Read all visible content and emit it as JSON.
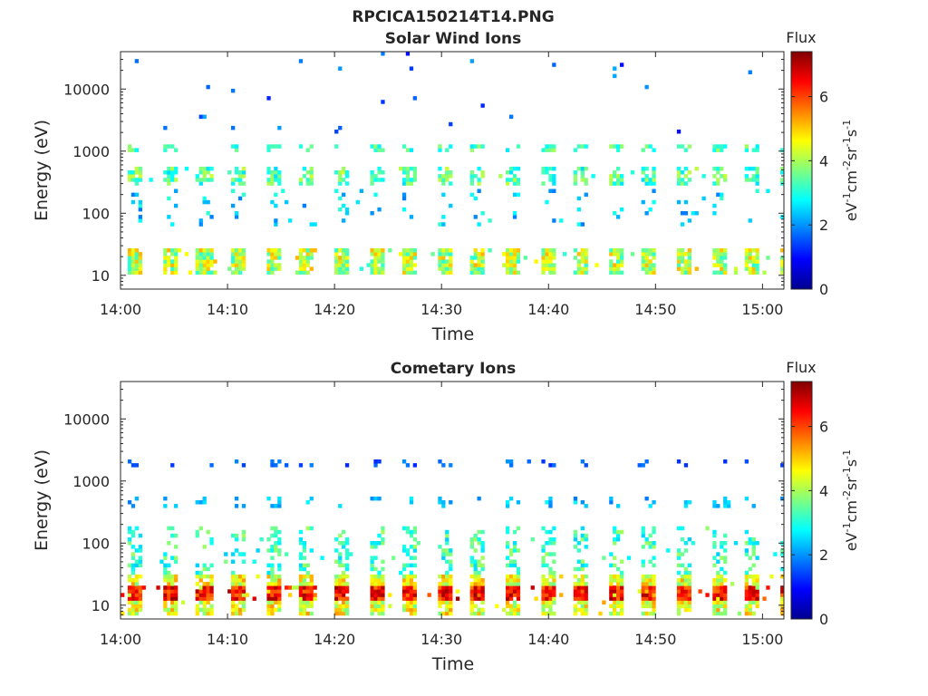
{
  "figure": {
    "title": "RPCICA150214T14.PNG"
  },
  "colorbar": {
    "label": "Flux",
    "unit_main": "eV",
    "unit_sup1": "-1",
    "unit_cm": "cm",
    "unit_sup2": "-2",
    "unit_sr": "sr",
    "unit_sup3": "-1",
    "unit_s": "s",
    "unit_sup4": "-1",
    "range": [
      0,
      7.4
    ],
    "ticks": [
      0,
      2,
      4,
      6
    ],
    "tick_labels": [
      "0",
      "2",
      "4",
      "6"
    ],
    "colormap": "jet"
  },
  "chart_data": [
    {
      "type": "heatmap",
      "title": "Solar Wind Ions",
      "xlabel": "Time",
      "ylabel": "Energy (eV)",
      "x_range": [
        "14:00",
        "15:02"
      ],
      "xlim_minutes": [
        0,
        62
      ],
      "y_scale": "log",
      "ylim": [
        6,
        40000
      ],
      "x_ticks": [
        "14:00",
        "14:10",
        "14:20",
        "14:30",
        "14:40",
        "14:50",
        "15:00"
      ],
      "y_ticks": [
        10,
        100,
        1000,
        10000
      ],
      "y_tick_labels": [
        "10",
        "100",
        "1000",
        "10000"
      ],
      "sweep_period_min": 3.2,
      "bands": [
        {
          "e_min": 10,
          "e_max": 28,
          "flux_min": 3.0,
          "flux_max": 5.2,
          "density": 0.9
        },
        {
          "e_min": 300,
          "e_max": 550,
          "flux_min": 2.5,
          "flux_max": 4.3,
          "density": 0.6
        },
        {
          "e_min": 1000,
          "e_max": 1300,
          "flux_min": 2.6,
          "flux_max": 4.0,
          "density": 0.5
        },
        {
          "e_min": 60,
          "e_max": 250,
          "flux_min": 1.8,
          "flux_max": 3.2,
          "density": 0.12
        },
        {
          "e_min": 2000,
          "e_max": 40000,
          "flux_min": 1.0,
          "flux_max": 2.2,
          "density": 0.02
        }
      ]
    },
    {
      "type": "heatmap",
      "title": "Cometary Ions",
      "xlabel": "Time",
      "ylabel": "Energy (eV)",
      "x_range": [
        "14:00",
        "15:02"
      ],
      "xlim_minutes": [
        0,
        62
      ],
      "y_scale": "log",
      "ylim": [
        6,
        40000
      ],
      "x_ticks": [
        "14:00",
        "14:10",
        "14:20",
        "14:30",
        "14:40",
        "14:50",
        "15:00"
      ],
      "y_ticks": [
        10,
        100,
        1000,
        10000
      ],
      "y_tick_labels": [
        "10",
        "100",
        "1000",
        "10000"
      ],
      "sweep_period_min": 3.2,
      "bands": [
        {
          "e_min": 12,
          "e_max": 22,
          "flux_min": 5.6,
          "flux_max": 7.2,
          "density": 0.95
        },
        {
          "e_min": 7,
          "e_max": 30,
          "flux_min": 3.6,
          "flux_max": 5.4,
          "density": 0.8
        },
        {
          "e_min": 30,
          "e_max": 200,
          "flux_min": 2.4,
          "flux_max": 4.0,
          "density": 0.35
        },
        {
          "e_min": 350,
          "e_max": 550,
          "flux_min": 1.8,
          "flux_max": 2.8,
          "density": 0.3
        },
        {
          "e_min": 1800,
          "e_max": 2300,
          "flux_min": 1.2,
          "flux_max": 2.0,
          "density": 0.25
        }
      ]
    }
  ]
}
